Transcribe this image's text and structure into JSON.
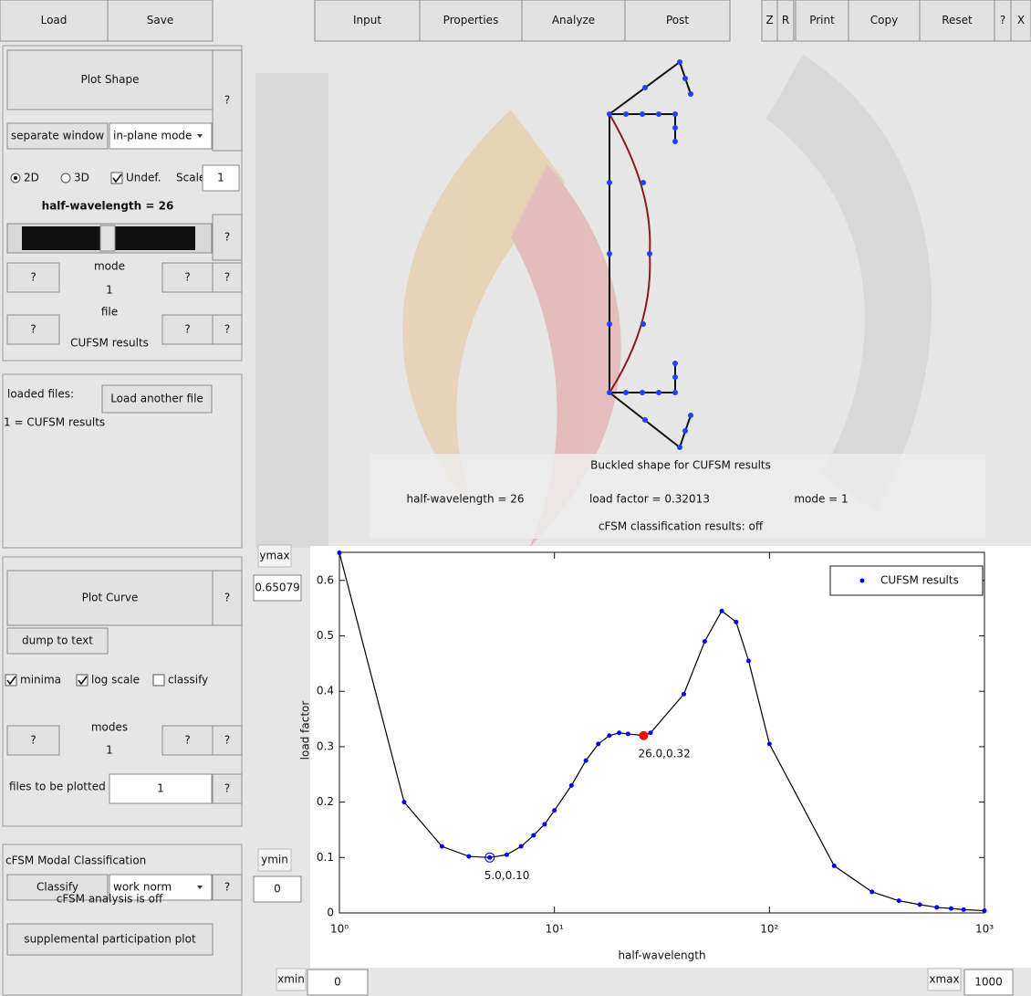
{
  "toolbar": {
    "file_buttons": [
      "Load",
      "Save"
    ],
    "tabs": [
      "Input",
      "Properties",
      "Analyze",
      "Post"
    ],
    "tools": [
      "Z",
      "R",
      "Print",
      "Copy",
      "Reset",
      "?",
      "X"
    ]
  },
  "shape_panel": {
    "plot_button": "Plot Shape",
    "help": "?",
    "window_button": "separate window",
    "mode_select": "in-plane mode",
    "dim_2d": "2D",
    "dim_3d": "3D",
    "undeformed": "Undef.",
    "scale_label": "Scale",
    "scale": "1",
    "half_wavelength": "half-wavelength = 26",
    "slider_help": "?",
    "mode_label": "mode",
    "mode": "1",
    "mode_buttons": [
      "?",
      "?",
      "?"
    ],
    "file_label": "file",
    "file": "CUFSM results",
    "file_buttons": [
      "?",
      "?",
      "?"
    ]
  },
  "files_panel": {
    "label": "loaded files:",
    "load_button": "Load another file",
    "entries": [
      "1 = CUFSM results"
    ]
  },
  "curve_panel": {
    "plot_button": "Plot Curve",
    "help": "?",
    "dump_button": "dump to text",
    "minima": "minima",
    "log_scale": "log scale",
    "classify": "classify",
    "modes_label": "modes",
    "modes": "1",
    "modes_buttons": [
      "?",
      "?",
      "?"
    ],
    "files_label": "files to be plotted",
    "files": "1",
    "files_help": "?"
  },
  "cfsm_panel": {
    "title": "cFSM Modal Classification",
    "classify_button": "Classify",
    "norm_select": "work norm",
    "help": "?",
    "status": "cFSM analysis is off",
    "supplemental_button": "supplemental participation plot"
  },
  "shape_info": {
    "title": "Buckled shape for CUFSM results",
    "half_wavelength": "half-wavelength = 26",
    "load_factor": "load factor = 0.32013",
    "mode": "mode = 1",
    "classification": "cFSM classification results: off"
  },
  "axis_controls": {
    "ymax_label": "ymax",
    "ymin_label": "ymin",
    "xmin_label": "xmin",
    "xmin": "0",
    "xmax_label": "xmax"
  },
  "chart_data": {
    "type": "line",
    "xlabel": "half-wavelength",
    "ylabel": "load factor",
    "x_log": true,
    "x": [
      1,
      2,
      3,
      4,
      5,
      6,
      7,
      8,
      9,
      10,
      12,
      14,
      16,
      18,
      20,
      22,
      26,
      28,
      40,
      50,
      60,
      70,
      80,
      100,
      200,
      300,
      400,
      500,
      600,
      700,
      800,
      1000
    ],
    "series": [
      {
        "name": "CUFSM results",
        "color": "#0000ff",
        "line_color": "#000000",
        "values": [
          0.65,
          0.2,
          0.12,
          0.102,
          0.1,
          0.105,
          0.12,
          0.14,
          0.16,
          0.185,
          0.23,
          0.275,
          0.305,
          0.32,
          0.325,
          0.323,
          0.32,
          0.325,
          0.395,
          0.49,
          0.545,
          0.525,
          0.455,
          0.305,
          0.085,
          0.038,
          0.022,
          0.015,
          0.01,
          0.008,
          0.006,
          0.004
        ]
      }
    ],
    "xlim": [
      1,
      1000
    ],
    "ylim": [
      0,
      0.65079
    ],
    "xticks": [
      {
        "value": 1,
        "label": "10⁰"
      },
      {
        "value": 10,
        "label": "10¹"
      },
      {
        "value": 100,
        "label": "10²"
      },
      {
        "value": 1000,
        "label": "10³"
      }
    ],
    "yticks": [
      0,
      0.1,
      0.2,
      0.3,
      0.4,
      0.5,
      0.6
    ],
    "annotations": [
      {
        "x": 26,
        "y": 0.32,
        "label": "26.0,0.32",
        "color": "#ff0000"
      },
      {
        "x": 5,
        "y": 0.1,
        "label": "5.0,0.10",
        "color": "#0000ff"
      }
    ],
    "legend": "upper right"
  }
}
